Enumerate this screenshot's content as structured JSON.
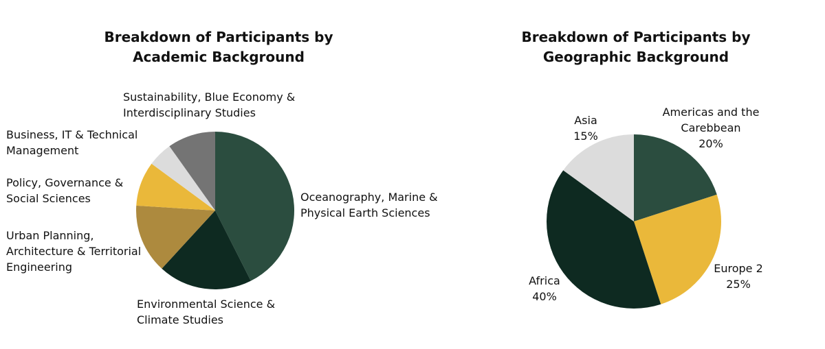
{
  "chart_data": [
    {
      "type": "pie",
      "title": "Breakdown of Participants by\nAcademic Background",
      "categories": [
        "Oceanography, Marine &\nPhysical Earth Sciences",
        "Environmental Science &\nClimate Studies",
        "Urban Planning,\nArchitecture & Territorial\nEngineering",
        "Policy, Governance &\nSocial Sciences",
        "Business, IT & Technical\nManagement",
        "Sustainability, Blue Economy &\nInterdisciplinary Studies"
      ],
      "values": [
        42,
        19,
        14,
        9,
        5,
        9.7
      ],
      "colors": [
        "#2b4d3f",
        "#0e2a21",
        "#ad8a3e",
        "#eab83a",
        "#dcdcdc",
        "#747474"
      ]
    },
    {
      "type": "pie",
      "title": "Breakdown of Participants by\nGeographic Background",
      "categories": [
        "Americas and the Carebbean",
        "Europe 2",
        "Africa",
        "Asia"
      ],
      "values": [
        20,
        25,
        40,
        15
      ],
      "percent_labels": [
        "20%",
        "25%",
        "40%",
        "15%"
      ],
      "colors": [
        "#2b4d3f",
        "#eab83a",
        "#0e2a21",
        "#dcdcdc"
      ]
    }
  ]
}
